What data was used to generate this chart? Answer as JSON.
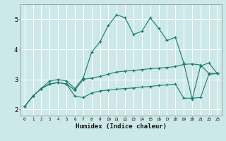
{
  "xlabel": "Humidex (Indice chaleur)",
  "ylabel": "",
  "background_color": "#cce8e8",
  "grid_color": "#ffffff",
  "line_color": "#1a7a6e",
  "xlim": [
    -0.5,
    23.5
  ],
  "ylim": [
    1.8,
    5.5
  ],
  "yticks": [
    2,
    3,
    4,
    5
  ],
  "xticks": [
    0,
    1,
    2,
    3,
    4,
    5,
    6,
    7,
    8,
    9,
    10,
    11,
    12,
    13,
    14,
    15,
    16,
    17,
    18,
    19,
    20,
    21,
    22,
    23
  ],
  "lines": [
    {
      "x": [
        0,
        1,
        2,
        3,
        4,
        5,
        6,
        7,
        8,
        9,
        10,
        11,
        12,
        13,
        14,
        15,
        16,
        17,
        18,
        19,
        20,
        21,
        22,
        23
      ],
      "y": [
        2.1,
        2.45,
        2.7,
        2.95,
        3.0,
        2.95,
        2.7,
        3.05,
        3.9,
        4.25,
        4.8,
        5.15,
        5.05,
        4.5,
        4.6,
        5.05,
        4.7,
        4.3,
        4.4,
        3.55,
        2.35,
        3.45,
        3.55,
        3.2
      ]
    },
    {
      "x": [
        0,
        1,
        2,
        3,
        4,
        5,
        6,
        7,
        8,
        9,
        10,
        11,
        12,
        13,
        14,
        15,
        16,
        17,
        18,
        19,
        20,
        21,
        22,
        23
      ],
      "y": [
        2.1,
        2.45,
        2.7,
        2.85,
        2.9,
        2.85,
        2.65,
        3.0,
        3.05,
        3.1,
        3.18,
        3.25,
        3.28,
        3.3,
        3.33,
        3.36,
        3.38,
        3.4,
        3.43,
        3.5,
        3.52,
        3.48,
        3.2,
        3.2
      ]
    },
    {
      "x": [
        0,
        1,
        2,
        3,
        4,
        5,
        6,
        7,
        8,
        9,
        10,
        11,
        12,
        13,
        14,
        15,
        16,
        17,
        18,
        19,
        20,
        21,
        22,
        23
      ],
      "y": [
        2.1,
        2.45,
        2.7,
        2.85,
        2.9,
        2.85,
        2.45,
        2.4,
        2.55,
        2.62,
        2.65,
        2.68,
        2.7,
        2.72,
        2.75,
        2.77,
        2.8,
        2.82,
        2.85,
        2.38,
        2.38,
        2.4,
        3.17,
        3.2
      ]
    }
  ]
}
